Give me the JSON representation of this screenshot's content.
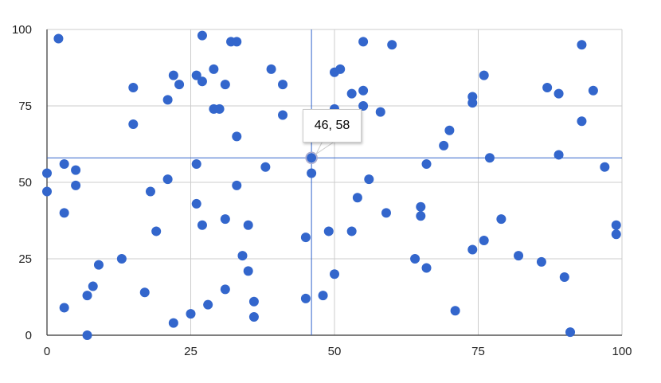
{
  "chart_data": {
    "type": "scatter",
    "title": "",
    "xlabel": "",
    "ylabel": "",
    "xlim": [
      0,
      100
    ],
    "ylim": [
      0,
      100
    ],
    "x_ticks": [
      "0",
      "25",
      "50",
      "75",
      "100"
    ],
    "y_ticks": [
      "0",
      "25",
      "50",
      "75",
      "100"
    ],
    "grid": true,
    "legend": "none",
    "color": "#3366cc",
    "points": [
      [
        2,
        97
      ],
      [
        0,
        53
      ],
      [
        0,
        47
      ],
      [
        3,
        56
      ],
      [
        5,
        54
      ],
      [
        5,
        49
      ],
      [
        15,
        81
      ],
      [
        15,
        69
      ],
      [
        21,
        77
      ],
      [
        22,
        85
      ],
      [
        23,
        82
      ],
      [
        27,
        98
      ],
      [
        26,
        85
      ],
      [
        27,
        83
      ],
      [
        29,
        87
      ],
      [
        31,
        82
      ],
      [
        29,
        74
      ],
      [
        30,
        74
      ],
      [
        32,
        96
      ],
      [
        33,
        96
      ],
      [
        33,
        65
      ],
      [
        39,
        87
      ],
      [
        41,
        82
      ],
      [
        41,
        72
      ],
      [
        50,
        86
      ],
      [
        26,
        56
      ],
      [
        38,
        55
      ],
      [
        46,
        58
      ],
      [
        46,
        53
      ],
      [
        21,
        51
      ],
      [
        33,
        49
      ],
      [
        18,
        47
      ],
      [
        3,
        40
      ],
      [
        26,
        43
      ],
      [
        27,
        36
      ],
      [
        31,
        38
      ],
      [
        35,
        36
      ],
      [
        19,
        34
      ],
      [
        45,
        32
      ],
      [
        49,
        34
      ],
      [
        34,
        26
      ],
      [
        13,
        25
      ],
      [
        9,
        23
      ],
      [
        35,
        21
      ],
      [
        50,
        20
      ],
      [
        8,
        16
      ],
      [
        7,
        13
      ],
      [
        17,
        14
      ],
      [
        31,
        15
      ],
      [
        3,
        9
      ],
      [
        36,
        11
      ],
      [
        45,
        12
      ],
      [
        48,
        13
      ],
      [
        28,
        10
      ],
      [
        25,
        7
      ],
      [
        22,
        4
      ],
      [
        36,
        6
      ],
      [
        7,
        0
      ],
      [
        55,
        96
      ],
      [
        60,
        95
      ],
      [
        51,
        87
      ],
      [
        53,
        79
      ],
      [
        55,
        80
      ],
      [
        55,
        75
      ],
      [
        58,
        73
      ],
      [
        50,
        74
      ],
      [
        76,
        85
      ],
      [
        74,
        78
      ],
      [
        74,
        76
      ],
      [
        87,
        81
      ],
      [
        89,
        79
      ],
      [
        93,
        95
      ],
      [
        95,
        80
      ],
      [
        93,
        70
      ],
      [
        70,
        67
      ],
      [
        69,
        62
      ],
      [
        66,
        56
      ],
      [
        77,
        58
      ],
      [
        89,
        59
      ],
      [
        97,
        55
      ],
      [
        56,
        51
      ],
      [
        54,
        45
      ],
      [
        59,
        40
      ],
      [
        65,
        42
      ],
      [
        65,
        39
      ],
      [
        53,
        34
      ],
      [
        79,
        38
      ],
      [
        76,
        31
      ],
      [
        74,
        28
      ],
      [
        99,
        36
      ],
      [
        99,
        33
      ],
      [
        64,
        25
      ],
      [
        66,
        22
      ],
      [
        82,
        26
      ],
      [
        86,
        24
      ],
      [
        90,
        19
      ],
      [
        71,
        8
      ],
      [
        91,
        1
      ]
    ],
    "crosshair": {
      "x": 46,
      "y": 58
    },
    "tooltip": "46, 58"
  }
}
